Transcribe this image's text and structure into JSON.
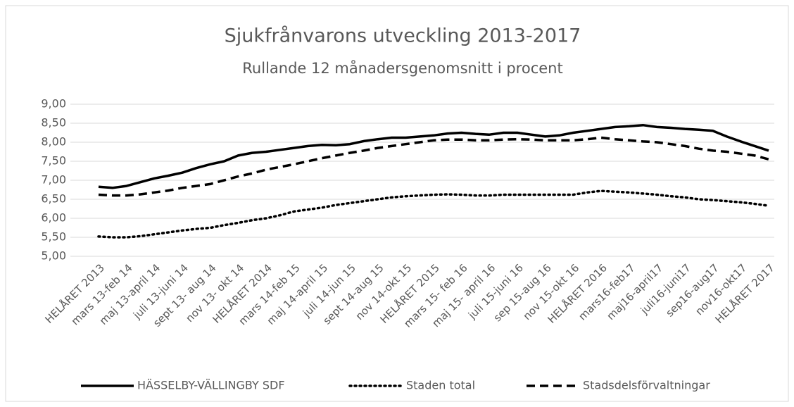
{
  "chart_data": {
    "type": "line",
    "title": "Sjukfrånvarons utveckling 2013-2017",
    "subtitle": "Rullande 12 månadersgenomsnitt i procent",
    "categories": [
      "HELÅRET 2013",
      null,
      "mars 13-feb 14",
      null,
      "maj 13-april 14",
      null,
      "juli 13-juni 14",
      null,
      "sept 13- aug 14",
      null,
      "nov 13- okt 14",
      null,
      "HELÅRET 2014",
      null,
      "mars 14-feb 15",
      null,
      "maj 14-april 15",
      null,
      "juli 14-jun 15",
      null,
      "sept 14-aug 15",
      null,
      "nov 14-okt 15",
      null,
      "HELÅRET 2015",
      null,
      "mars 15- feb 16",
      null,
      "maj 15- april 16",
      null,
      "juli 15-juni 16",
      null,
      "sep 15-aug 16",
      null,
      "nov 15-okt 16",
      null,
      "HELÅRET 2016",
      null,
      "mars16-feb17",
      null,
      "maj16-april17",
      null,
      "juli16-juni17",
      null,
      "sep16-aug17",
      null,
      "nov16-okt17",
      null,
      "HELÅRET 2017"
    ],
    "series": [
      {
        "name": "HÄSSELBY-VÄLLINGBY SDF",
        "color": "#000000",
        "line_style": "solid",
        "values": [
          6.83,
          6.8,
          6.85,
          6.95,
          7.05,
          7.12,
          7.2,
          7.32,
          7.42,
          7.5,
          7.65,
          7.72,
          7.75,
          7.8,
          7.85,
          7.9,
          7.93,
          7.92,
          7.95,
          8.03,
          8.08,
          8.12,
          8.12,
          8.15,
          8.18,
          8.23,
          8.25,
          8.22,
          8.2,
          8.25,
          8.25,
          8.2,
          8.15,
          8.18,
          8.25,
          8.3,
          8.35,
          8.4,
          8.42,
          8.45,
          8.4,
          8.38,
          8.35,
          8.33,
          8.3,
          8.15,
          8.02,
          7.9,
          7.78
        ]
      },
      {
        "name": "Staden total",
        "color": "#000000",
        "line_style": "dotted",
        "values": [
          5.52,
          5.5,
          5.5,
          5.53,
          5.58,
          5.63,
          5.68,
          5.72,
          5.75,
          5.82,
          5.88,
          5.95,
          6.0,
          6.08,
          6.18,
          6.23,
          6.28,
          6.35,
          6.4,
          6.45,
          6.5,
          6.55,
          6.58,
          6.6,
          6.62,
          6.63,
          6.62,
          6.6,
          6.6,
          6.62,
          6.62,
          6.62,
          6.62,
          6.62,
          6.62,
          6.68,
          6.72,
          6.7,
          6.68,
          6.65,
          6.62,
          6.58,
          6.55,
          6.5,
          6.48,
          6.45,
          6.42,
          6.38,
          6.33
        ]
      },
      {
        "name": "Stadsdelsförvaltningar",
        "color": "#000000",
        "line_style": "dashed",
        "values": [
          6.62,
          6.6,
          6.6,
          6.63,
          6.68,
          6.73,
          6.8,
          6.85,
          6.9,
          7.0,
          7.1,
          7.18,
          7.28,
          7.35,
          7.42,
          7.5,
          7.58,
          7.65,
          7.72,
          7.78,
          7.85,
          7.9,
          7.95,
          8.0,
          8.05,
          8.07,
          8.07,
          8.05,
          8.05,
          8.07,
          8.08,
          8.07,
          8.05,
          8.05,
          8.05,
          8.08,
          8.12,
          8.08,
          8.05,
          8.02,
          8.0,
          7.95,
          7.9,
          7.83,
          7.78,
          7.75,
          7.7,
          7.65,
          7.55
        ]
      }
    ],
    "ylim": [
      5,
      9
    ],
    "yticks": [
      {
        "value": 5,
        "label": "5,00"
      },
      {
        "value": 5.5,
        "label": "5,50"
      },
      {
        "value": 6,
        "label": "6,00"
      },
      {
        "value": 6.5,
        "label": "6,50"
      },
      {
        "value": 7,
        "label": "7,00"
      },
      {
        "value": 7.5,
        "label": "7,50"
      },
      {
        "value": 8,
        "label": "8,00"
      },
      {
        "value": 8.5,
        "label": "8,50"
      },
      {
        "value": 9,
        "label": "9,00"
      }
    ],
    "grid": true,
    "legend": "bottom"
  }
}
